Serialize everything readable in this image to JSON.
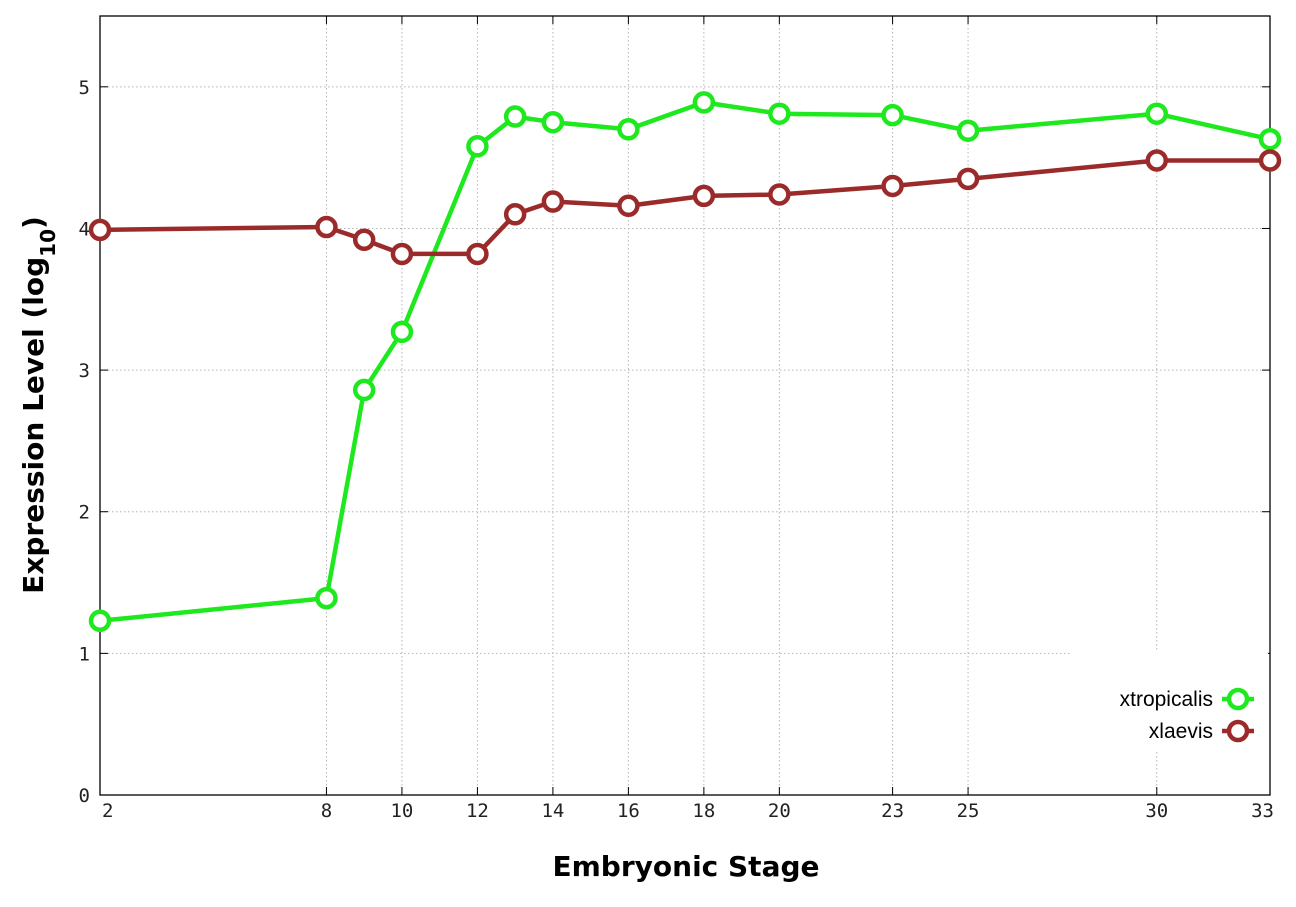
{
  "chart_data": {
    "type": "line",
    "xlabel": "Embryonic Stage",
    "ylabel_main": "Expression Level (log",
    "ylabel_sub": "10",
    "ylabel_close": ")",
    "ylim": [
      0,
      5.5
    ],
    "xlim": [
      2,
      33
    ],
    "x_ticks": [
      2,
      8,
      10,
      12,
      14,
      16,
      18,
      20,
      23,
      25,
      30,
      33
    ],
    "y_ticks": [
      0,
      1,
      2,
      3,
      4,
      5
    ],
    "x": [
      2,
      8,
      9,
      10,
      12,
      13,
      14,
      16,
      18,
      20,
      23,
      25,
      30,
      33
    ],
    "grid": true,
    "legend_position": "bottom-right",
    "series": [
      {
        "name": "xtropicalis",
        "color": "#1ee81e",
        "values": [
          1.23,
          1.39,
          2.86,
          3.27,
          4.58,
          4.79,
          4.75,
          4.7,
          4.89,
          4.81,
          4.8,
          4.69,
          4.81,
          4.63
        ]
      },
      {
        "name": "xlaevis",
        "color": "#9b2b2b",
        "values": [
          3.99,
          4.01,
          3.92,
          3.82,
          3.82,
          4.1,
          4.19,
          4.16,
          4.23,
          4.24,
          4.3,
          4.35,
          4.48,
          4.48
        ]
      }
    ]
  }
}
